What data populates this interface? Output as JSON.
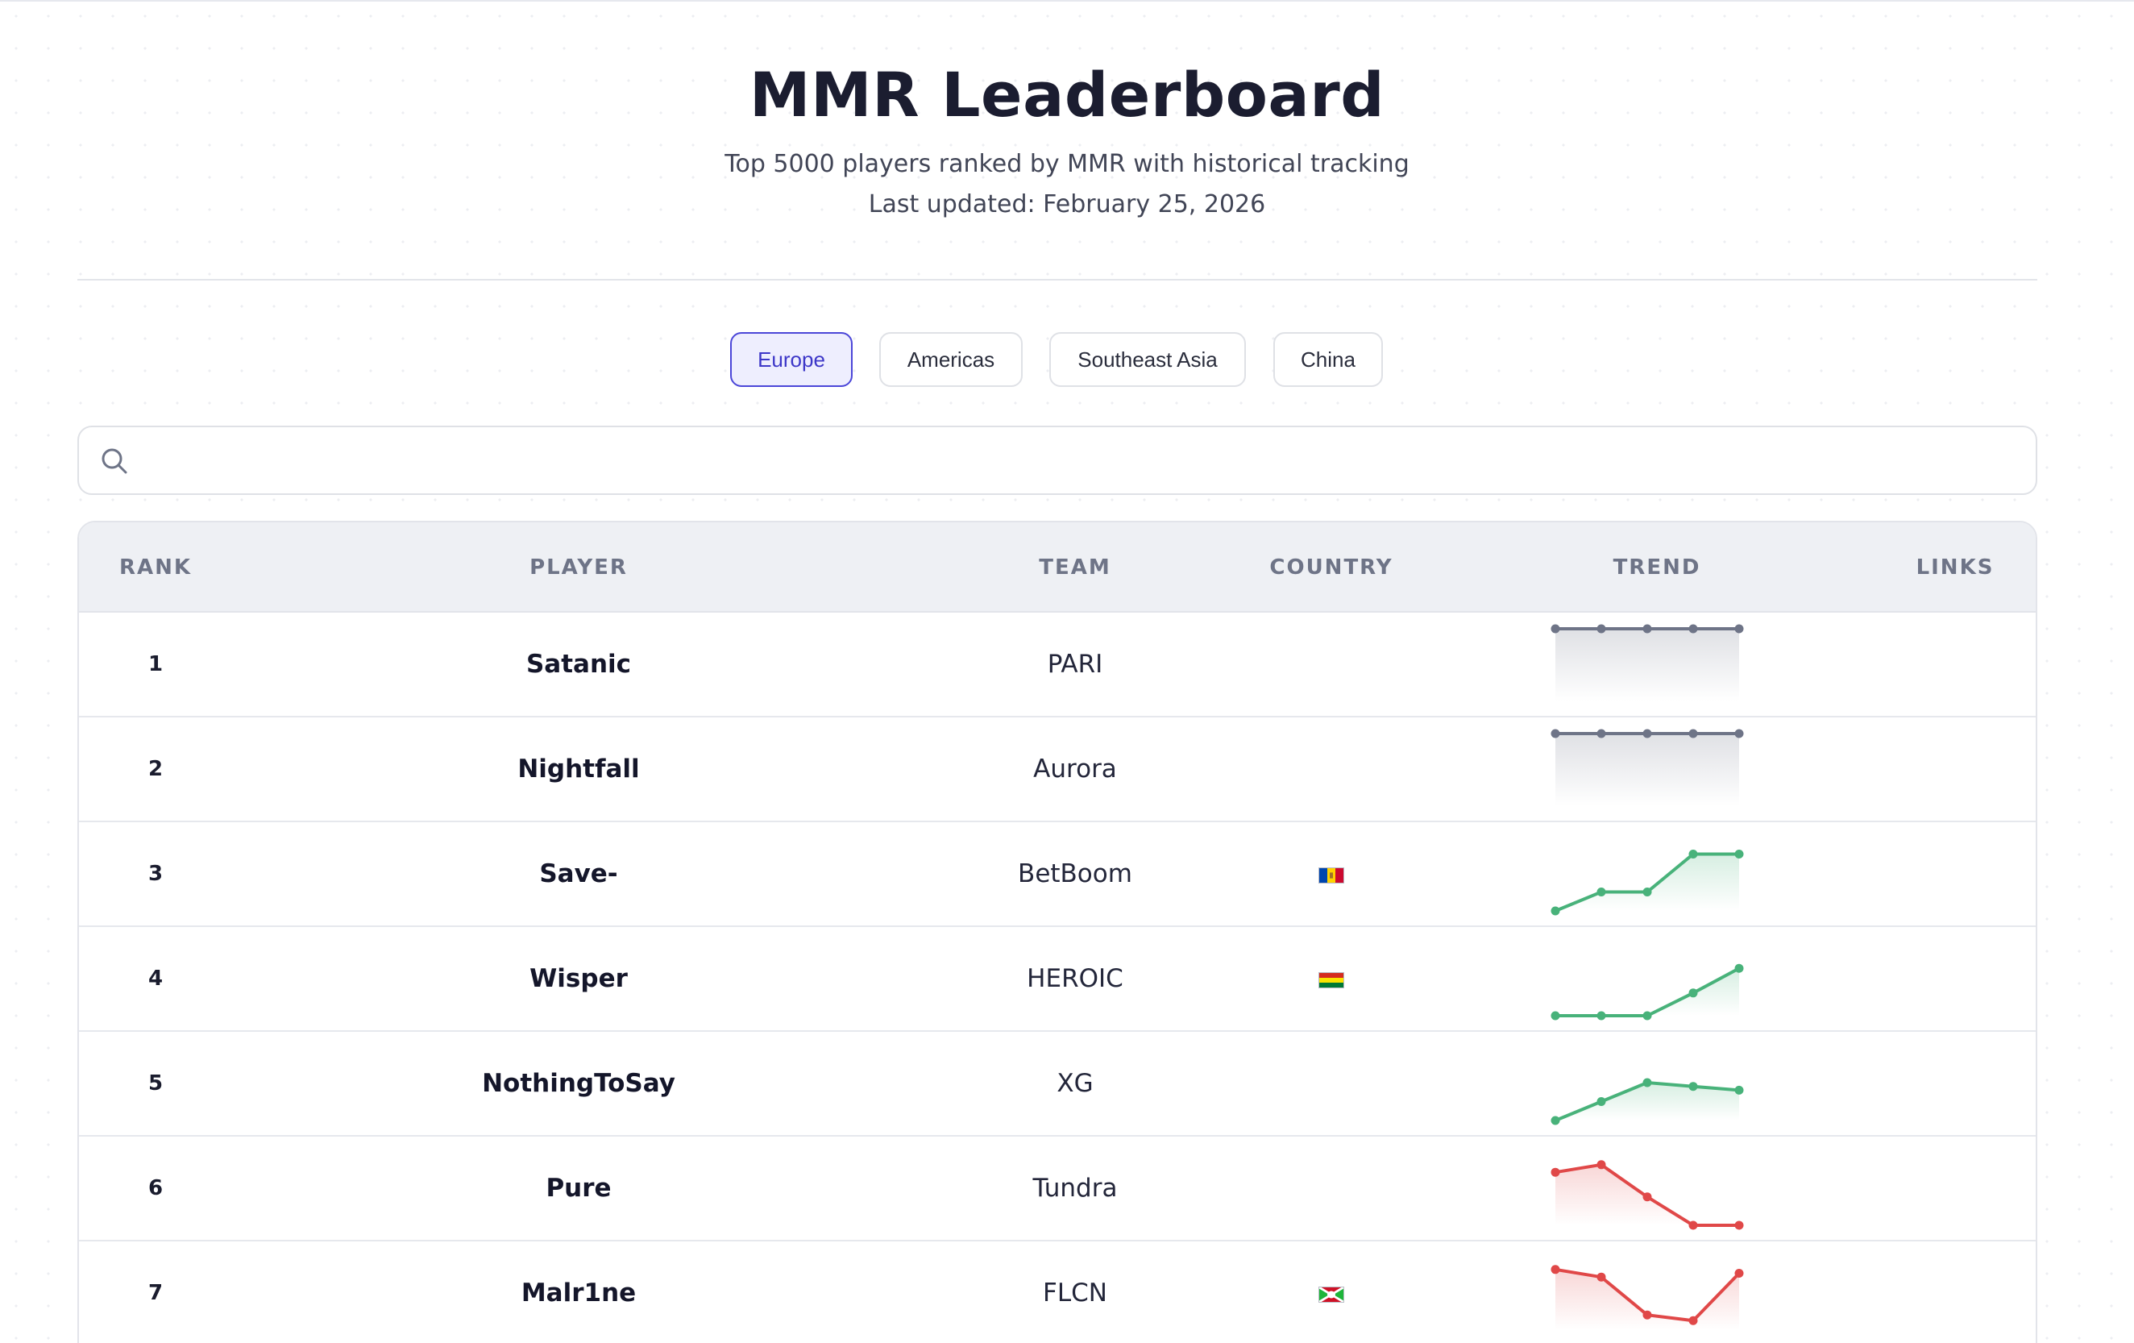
{
  "header": {
    "title": "MMR Leaderboard",
    "subtitle": "Top 5000 players ranked by MMR with historical tracking",
    "last_updated": "Last updated: February 25, 2026"
  },
  "tabs": [
    {
      "label": "Europe",
      "active": true
    },
    {
      "label": "Americas",
      "active": false
    },
    {
      "label": "Southeast Asia",
      "active": false
    },
    {
      "label": "China",
      "active": false
    }
  ],
  "search": {
    "placeholder": "",
    "value": ""
  },
  "table": {
    "columns": [
      "RANK",
      "PLAYER",
      "TEAM",
      "COUNTRY",
      "TREND",
      "LINKS"
    ],
    "rows": [
      {
        "rank": "1",
        "player": "Satanic",
        "team": "PARI",
        "country_flag": "",
        "trend": [
          5,
          5,
          5,
          5,
          5
        ],
        "trend_direction": "flat"
      },
      {
        "rank": "2",
        "player": "Nightfall",
        "team": "Aurora",
        "country_flag": "",
        "trend": [
          5,
          5,
          5,
          5,
          5
        ],
        "trend_direction": "flat"
      },
      {
        "rank": "3",
        "player": "Save-",
        "team": "BetBoom",
        "country_flag": "md",
        "trend": [
          1,
          2,
          2,
          4,
          4
        ],
        "trend_direction": "up"
      },
      {
        "rank": "4",
        "player": "Wisper",
        "team": "HEROIC",
        "country_flag": "bo",
        "trend": [
          1,
          1,
          1,
          2.2,
          3.5
        ],
        "trend_direction": "up"
      },
      {
        "rank": "5",
        "player": "NothingToSay",
        "team": "XG",
        "country_flag": "",
        "trend": [
          1,
          2,
          3,
          2.8,
          2.6
        ],
        "trend_direction": "up"
      },
      {
        "rank": "6",
        "player": "Pure",
        "team": "Tundra",
        "country_flag": "",
        "trend": [
          3.8,
          4.2,
          2.5,
          1,
          1
        ],
        "trend_direction": "down"
      },
      {
        "rank": "7",
        "player": "Malr1ne",
        "team": "FLCN",
        "country_flag": "bi",
        "trend": [
          4.2,
          3.8,
          1.8,
          1.5,
          4
        ],
        "trend_direction": "down"
      }
    ]
  },
  "colors": {
    "flat": "#6e7487",
    "up": "#48b27a",
    "down": "#e04848",
    "accent": "#4b46d8"
  }
}
